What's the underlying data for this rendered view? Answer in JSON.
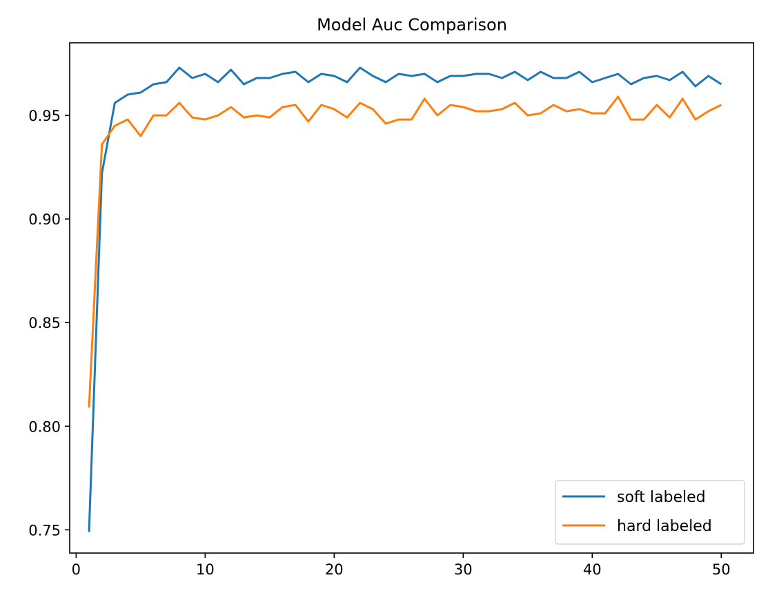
{
  "chart_data": {
    "type": "line",
    "title": "Model Auc Comparison",
    "xlabel": "",
    "ylabel": "",
    "xlim": [
      -0.5,
      52.5
    ],
    "ylim": [
      0.7388,
      0.985
    ],
    "xticks": [
      0,
      10,
      20,
      30,
      40,
      50
    ],
    "yticks": [
      0.75,
      0.8,
      0.85,
      0.9,
      0.95
    ],
    "xtick_labels": [
      "0",
      "10",
      "20",
      "30",
      "40",
      "50"
    ],
    "ytick_labels": [
      "0.75",
      "0.80",
      "0.85",
      "0.90",
      "0.95"
    ],
    "grid": false,
    "legend_position": "lower-right",
    "x": [
      1,
      2,
      3,
      4,
      5,
      6,
      7,
      8,
      9,
      10,
      11,
      12,
      13,
      14,
      15,
      16,
      17,
      18,
      19,
      20,
      21,
      22,
      23,
      24,
      25,
      26,
      27,
      28,
      29,
      30,
      31,
      32,
      33,
      34,
      35,
      36,
      37,
      38,
      39,
      40,
      41,
      42,
      43,
      44,
      45,
      46,
      47,
      48,
      49,
      50
    ],
    "series": [
      {
        "name": "soft labeled",
        "color": "#1f77b4",
        "values": [
          0.749,
          0.922,
          0.956,
          0.96,
          0.961,
          0.965,
          0.966,
          0.973,
          0.968,
          0.97,
          0.966,
          0.972,
          0.965,
          0.968,
          0.968,
          0.97,
          0.971,
          0.966,
          0.97,
          0.969,
          0.966,
          0.973,
          0.969,
          0.966,
          0.97,
          0.969,
          0.97,
          0.966,
          0.969,
          0.969,
          0.97,
          0.97,
          0.968,
          0.971,
          0.967,
          0.971,
          0.968,
          0.968,
          0.971,
          0.966,
          0.968,
          0.97,
          0.965,
          0.968,
          0.969,
          0.967,
          0.971,
          0.964,
          0.969,
          0.965
        ]
      },
      {
        "name": "hard labeled",
        "color": "#ff7f0e",
        "values": [
          0.809,
          0.936,
          0.945,
          0.948,
          0.94,
          0.95,
          0.95,
          0.956,
          0.949,
          0.948,
          0.95,
          0.954,
          0.949,
          0.95,
          0.949,
          0.954,
          0.955,
          0.947,
          0.955,
          0.953,
          0.949,
          0.956,
          0.953,
          0.946,
          0.948,
          0.948,
          0.958,
          0.95,
          0.955,
          0.954,
          0.952,
          0.952,
          0.953,
          0.956,
          0.95,
          0.951,
          0.955,
          0.952,
          0.953,
          0.951,
          0.951,
          0.959,
          0.948,
          0.948,
          0.955,
          0.949,
          0.958,
          0.948,
          0.952,
          0.955
        ]
      }
    ]
  }
}
